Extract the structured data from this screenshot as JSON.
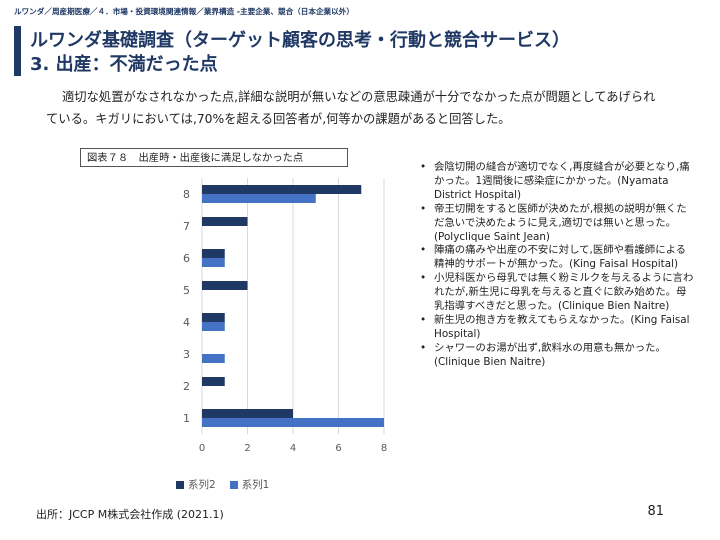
{
  "header": {
    "breadcrumb": "ルワンダ／周産期医療／４．市場・投資環境関連情報／業界構造 -主要企業、競合（日本企業以外）",
    "title_line1": "ルワンダ基礎調査（ターゲット顧客の思考・行動と競合サービス）",
    "title_line2": "3. 出産：不満だった点"
  },
  "body": {
    "paragraph": "適切な処置がなされなかった点,詳細な説明が無いなどの意思疎通が十分でなかった点が問題としてあげられている。キガリにおいては,70%を超える回答者が,何等かの課題があると回答した。"
  },
  "figure": {
    "caption": "図表７８　出産時・出産後に満足しなかった点"
  },
  "chart_data": {
    "type": "bar",
    "orientation": "horizontal",
    "categories": [
      "1",
      "2",
      "3",
      "4",
      "5",
      "6",
      "7",
      "8"
    ],
    "series": [
      {
        "name": "系列2",
        "color": "#203864",
        "values": [
          4,
          1,
          0,
          1,
          2,
          1,
          2,
          7
        ]
      },
      {
        "name": "系列1",
        "color": "#4472c4",
        "values": [
          8,
          0,
          1,
          1,
          0,
          1,
          0,
          5
        ]
      }
    ],
    "xlim": [
      0,
      8
    ],
    "xticks": [
      0,
      2,
      4,
      6,
      8
    ],
    "grid": true,
    "legend": "bottom"
  },
  "comments": [
    "会陰切開の縫合が適切でなく,再度縫合が必要となり,痛かった。1週間後に感染症にかかった。(Nyamata District Hospital)",
    "帝王切開をすると医師が決めたが,根拠の説明が無くただ急いで決めたように見え,適切では無いと思った。(Polyclique Saint Jean)",
    "陣痛の痛みや出産の不安に対して,医師や看護師による精神的サポートが無かった。(King Faisal Hospital)",
    "小児科医から母乳では無く粉ミルクを与えるように言われたが,新生児に母乳を与えると直ぐに飲み始めた。母乳指導すべきだと思った。(Clinique Bien Naitre)",
    "新生児の抱き方を教えてもらえなかった。(King Faisal Hospital)",
    "シャワーのお湯が出ず,飲料水の用意も無かった。(Clinique Bien Naitre)"
  ],
  "footer": {
    "source": "出所：JCCP M株式会社作成 (2021.1)",
    "page_number": "81"
  }
}
